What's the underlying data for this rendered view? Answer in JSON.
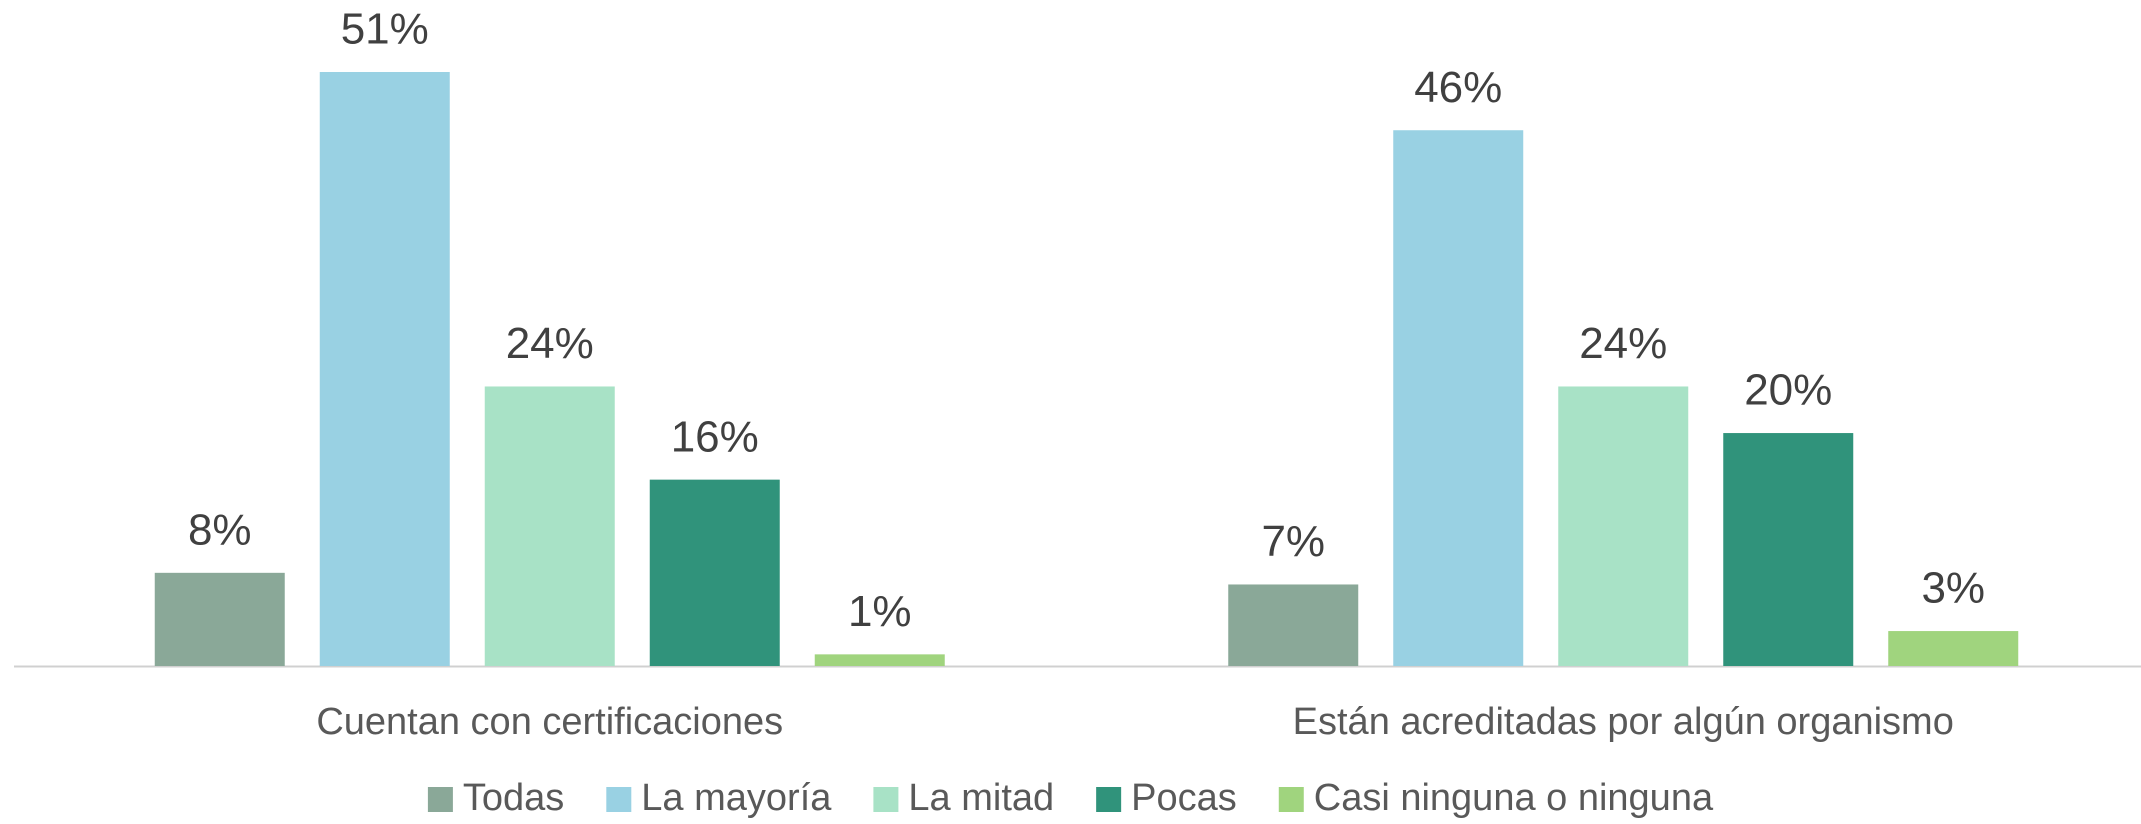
{
  "chart_data": {
    "type": "bar",
    "categories": [
      "Cuentan con certificaciones",
      "Están acreditadas por algún organismo"
    ],
    "series": [
      {
        "name": "Todas",
        "color": "#8aa898",
        "values": [
          8,
          7
        ],
        "value_labels": [
          "8%",
          "7%"
        ]
      },
      {
        "name": "La mayoría",
        "color": "#99d1e3",
        "values": [
          51,
          46
        ],
        "value_labels": [
          "51%",
          "46%"
        ]
      },
      {
        "name": "La mitad",
        "color": "#a8e2c6",
        "values": [
          24,
          24
        ],
        "value_labels": [
          "24%",
          "24%"
        ]
      },
      {
        "name": "Pocas",
        "color": "#30937b",
        "values": [
          16,
          20
        ],
        "value_labels": [
          "16%",
          "20%"
        ]
      },
      {
        "name": "Casi ninguna o ninguna",
        "color": "#a0d47e",
        "values": [
          1,
          3
        ],
        "value_labels": [
          "1%",
          "3%"
        ]
      }
    ],
    "legend": "bottom"
  }
}
